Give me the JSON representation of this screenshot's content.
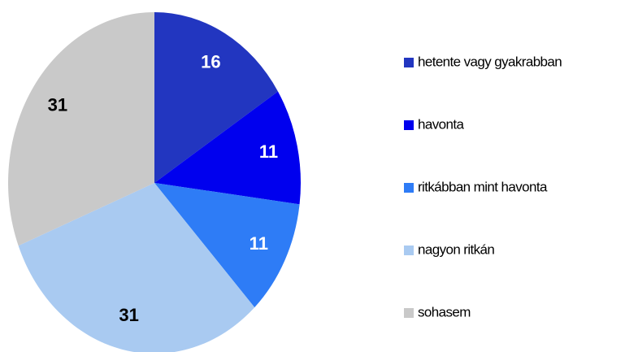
{
  "chart_data": {
    "type": "pie",
    "categories": [
      "hetente vagy gyakrabban",
      "havonta",
      "ritkábban mint havonta",
      "nagyon ritkán",
      "sohasem"
    ],
    "values": [
      16,
      11,
      11,
      31,
      31
    ],
    "colors": [
      "#2236c0",
      "#0000ee",
      "#2e7cf6",
      "#a9caf1",
      "#c9c9c9"
    ],
    "label_colors": [
      "#ffffff",
      "#ffffff",
      "#ffffff",
      "#000000",
      "#000000"
    ],
    "legend": "right"
  }
}
